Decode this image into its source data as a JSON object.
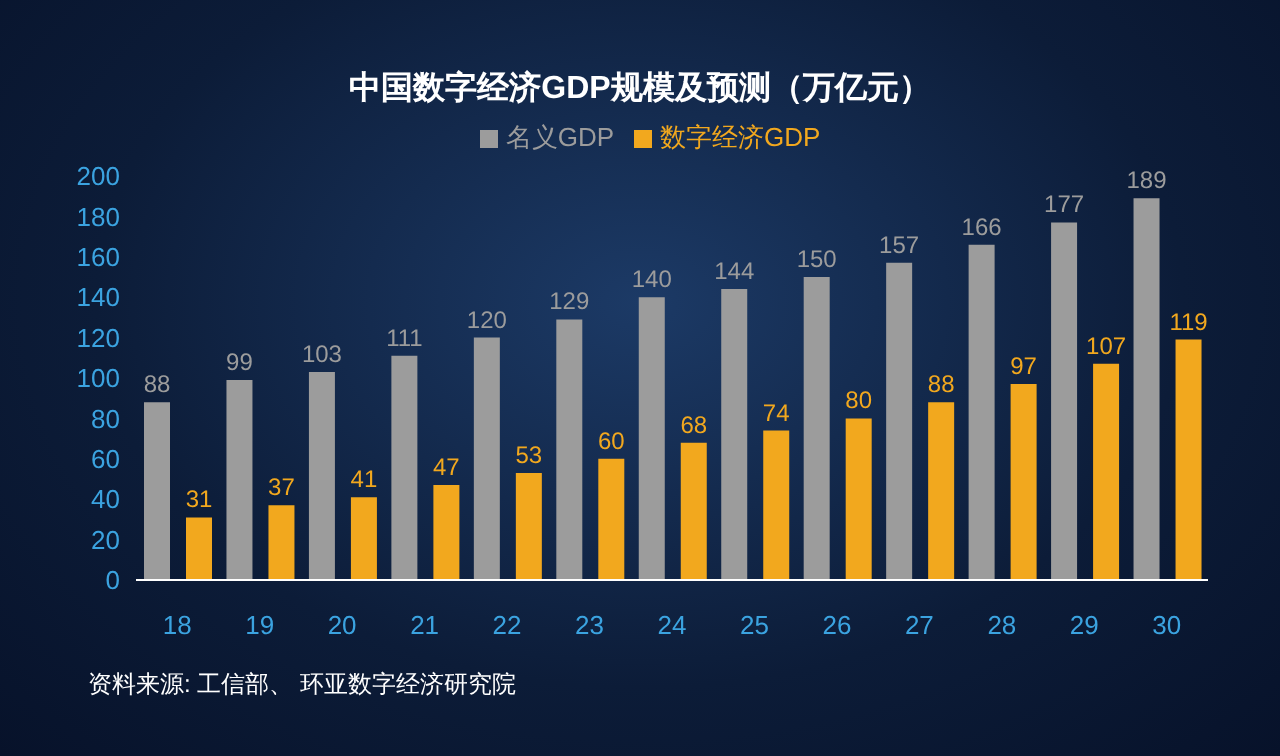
{
  "chart_data": {
    "type": "bar",
    "title": "中国数字经济GDP规模及预测（万亿元）",
    "categories": [
      "18",
      "19",
      "20",
      "21",
      "22",
      "23",
      "24",
      "25",
      "26",
      "27",
      "28",
      "29",
      "30"
    ],
    "series": [
      {
        "name": "名义GDP",
        "color": "#9c9c9c",
        "values": [
          88,
          99,
          103,
          111,
          120,
          129,
          140,
          144,
          150,
          157,
          166,
          177,
          189
        ]
      },
      {
        "name": "数字经济GDP",
        "color": "#f2a81e",
        "values": [
          31,
          37,
          41,
          47,
          53,
          60,
          68,
          74,
          80,
          88,
          97,
          107,
          119
        ]
      }
    ],
    "ylim": [
      0,
      200
    ],
    "yticks": [
      0,
      20,
      40,
      60,
      80,
      100,
      120,
      140,
      160,
      180,
      200
    ],
    "legend": "top",
    "data_labels": true,
    "annotations": [
      "资料来源: 工信部、 环亚数字经济研究院"
    ]
  }
}
